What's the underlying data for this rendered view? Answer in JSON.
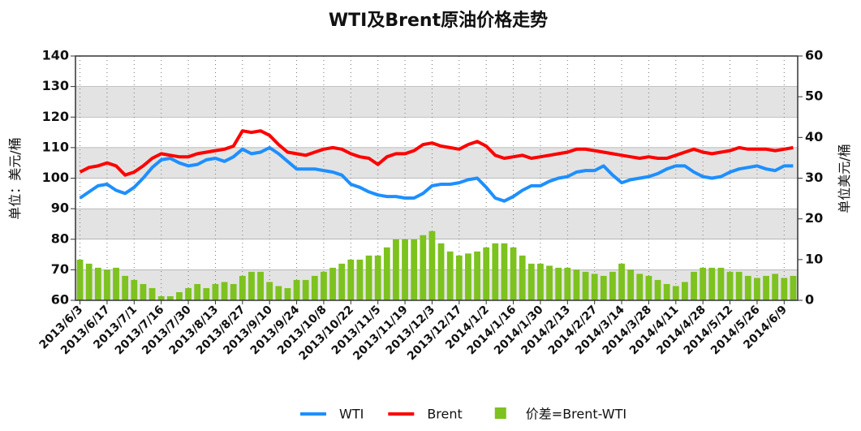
{
  "chart_data": {
    "type": "line",
    "title": "WTI及Brent原油价格走势",
    "ylabel": "单位：美元/桶",
    "y2label": "单位美元/桶",
    "categories": [
      "2013/6/3",
      null,
      null,
      "2013/6/17",
      null,
      null,
      "2013/7/1",
      null,
      null,
      "2013/7/16",
      null,
      null,
      "2013/7/30",
      null,
      null,
      "2013/8/13",
      null,
      null,
      "2013/8/27",
      null,
      null,
      "2013/9/10",
      null,
      null,
      "2013/9/24",
      null,
      null,
      "2013/10/8",
      null,
      null,
      "2013/10/22",
      null,
      null,
      "2013/11/5",
      null,
      null,
      "2013/11/19",
      null,
      null,
      "2013/12/3",
      null,
      null,
      "2013/12/17",
      null,
      null,
      "2014/1/2",
      null,
      null,
      "2014/1/16",
      null,
      null,
      "2014/1/30",
      null,
      null,
      "2014/2/13",
      null,
      null,
      "2014/2/27",
      null,
      null,
      "2014/3/14",
      null,
      null,
      "2014/3/28",
      null,
      null,
      "2014/4/11",
      null,
      null,
      "2014/4/28",
      null,
      null,
      "2014/5/12",
      null,
      null,
      "2014/5/26",
      null,
      null,
      "2014/6/9",
      null
    ],
    "series": [
      {
        "name": "WTI",
        "color": "#1e8fff",
        "type": "line",
        "values": [
          93.5,
          95.5,
          97.5,
          98,
          96,
          95,
          97,
          100,
          103.5,
          106,
          106.5,
          105,
          104,
          104.5,
          106,
          106.5,
          105.5,
          107,
          109.5,
          108,
          108.5,
          110,
          108,
          105.5,
          103,
          103,
          103,
          102.5,
          102,
          101,
          98,
          97,
          95.5,
          94.5,
          94,
          94,
          93.5,
          93.5,
          95,
          97.5,
          98,
          98,
          98.5,
          99.5,
          100,
          97,
          93.5,
          92.5,
          94,
          96,
          97.5,
          97.5,
          99,
          100,
          100.5,
          102,
          102.5,
          102.5,
          104,
          101,
          98.5,
          99.5,
          100,
          100.5,
          101.5,
          103,
          104,
          104,
          102,
          100.5,
          100,
          100.5,
          102,
          103,
          103.5,
          104,
          103,
          102.5,
          104,
          104
        ]
      },
      {
        "name": "Brent",
        "color": "#ff0000",
        "type": "line",
        "values": [
          102,
          103.5,
          104,
          105,
          104,
          101,
          102,
          104,
          106.5,
          108,
          107.5,
          107,
          107,
          108,
          108.5,
          109,
          109.5,
          110.5,
          115.5,
          115,
          115.5,
          114,
          111,
          108.5,
          108,
          107.5,
          108.5,
          109.5,
          110,
          109.5,
          108,
          107,
          106.5,
          104.5,
          107,
          108,
          108,
          109,
          111,
          111.5,
          110.5,
          110,
          109.5,
          111,
          112,
          110.5,
          107.5,
          106.5,
          107,
          107.5,
          106.5,
          107,
          107.5,
          108,
          108.5,
          109.5,
          109.5,
          109,
          108.5,
          108,
          107.5,
          107,
          106.5,
          107,
          106.5,
          106.5,
          107.5,
          108.5,
          109.5,
          108.5,
          108,
          108.5,
          109,
          110,
          109.5,
          109.5,
          109.5,
          109,
          109.5,
          110
        ]
      },
      {
        "name": "价差=Brent-WTI",
        "color": "#7dc21e",
        "type": "bar",
        "axis": "y2",
        "values": [
          10,
          9,
          8,
          7.5,
          8,
          6,
          5,
          4,
          3,
          1,
          1,
          2,
          3,
          4,
          3,
          4,
          4.5,
          4,
          6,
          7,
          7,
          4.5,
          3.5,
          3,
          5,
          5,
          6,
          7,
          8,
          9,
          10,
          10,
          11,
          11,
          13,
          15,
          15,
          15,
          16,
          17,
          14,
          12,
          11,
          11.5,
          12,
          13,
          14,
          14,
          13,
          11,
          9,
          9,
          8.5,
          8,
          8,
          7.5,
          7,
          6.5,
          6,
          7,
          9,
          7.5,
          6.5,
          6,
          5,
          4,
          3.5,
          4.5,
          7,
          8,
          8,
          8,
          7,
          7,
          6,
          5.5,
          6,
          6.5,
          5.5,
          6
        ]
      }
    ],
    "ylim": [
      60,
      140
    ],
    "yticks": [
      60,
      70,
      80,
      90,
      100,
      110,
      120,
      130,
      140
    ],
    "y2lim": [
      0,
      60
    ],
    "y2ticks": [
      0,
      10,
      20,
      30,
      40,
      50,
      60
    ],
    "grid": true,
    "legend": "bottom"
  }
}
